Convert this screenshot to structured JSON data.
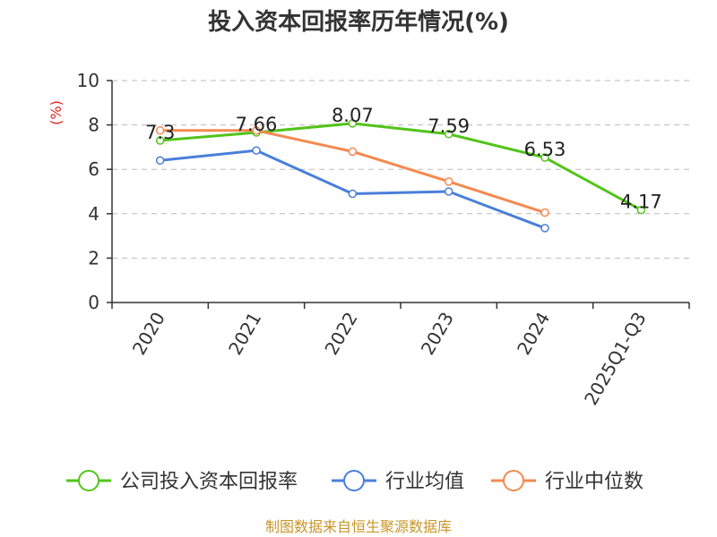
{
  "colors": {
    "company": "#52c41a",
    "industry_avg": "#4a7fdb",
    "industry_median": "#f5894f",
    "axis": "#333333",
    "grid": "#bbbbbb",
    "ylabel": "#e02020",
    "source": "#c8962a"
  },
  "chart_data": {
    "type": "line",
    "title": "投入资本回报率历年情况(%)",
    "ylabel": "(%)",
    "xlabel": "",
    "ylim": [
      0,
      10
    ],
    "yticks": [
      0,
      2,
      4,
      6,
      8,
      10
    ],
    "grid": true,
    "legend_position": "bottom",
    "categories": [
      "2020",
      "2021",
      "2022",
      "2023",
      "2024",
      "2025Q1-Q3"
    ],
    "series": [
      {
        "name": "公司投入资本回报率",
        "color_key": "company",
        "values": [
          7.3,
          7.66,
          8.07,
          7.59,
          6.53,
          4.17
        ],
        "labels": [
          "7.3",
          "7.66",
          "8.07",
          "7.59",
          "6.53",
          "4.17"
        ],
        "show_labels": true
      },
      {
        "name": "行业均值",
        "color_key": "industry_avg",
        "values": [
          6.4,
          6.85,
          4.9,
          5.0,
          3.35,
          null
        ],
        "show_labels": false
      },
      {
        "name": "行业中位数",
        "color_key": "industry_median",
        "values": [
          7.75,
          7.75,
          6.8,
          5.45,
          4.05,
          null
        ],
        "show_labels": false
      }
    ]
  },
  "footer": {
    "source": "制图数据来自恒生聚源数据库"
  }
}
